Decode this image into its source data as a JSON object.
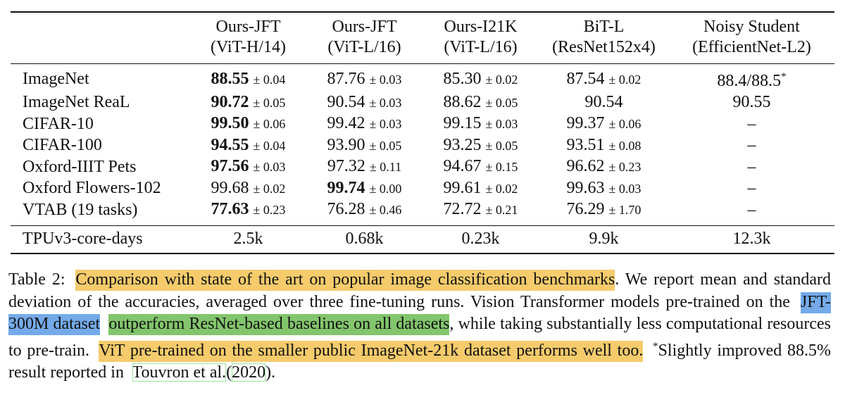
{
  "table": {
    "columns": [
      {
        "name": "Ours-JFT",
        "model": "(ViT-H/14)"
      },
      {
        "name": "Ours-JFT",
        "model": "(ViT-L/16)"
      },
      {
        "name": "Ours-I21K",
        "model": "(ViT-L/16)"
      },
      {
        "name": "BiT-L",
        "model": "(ResNet152x4)"
      },
      {
        "name": "Noisy Student",
        "model": "(EfficientNet-L2)"
      }
    ],
    "rows": [
      {
        "label": "ImageNet",
        "cells": [
          {
            "value": "88.55",
            "std": "± 0.04",
            "bold": true
          },
          {
            "value": "87.76",
            "std": "± 0.03"
          },
          {
            "value": "85.30",
            "std": "± 0.02"
          },
          {
            "value": "87.54",
            "std": "± 0.02"
          },
          {
            "value": "88.4/88.5",
            "sup": "*"
          }
        ]
      },
      {
        "label": "ImageNet ReaL",
        "cells": [
          {
            "value": "90.72",
            "std": "± 0.05",
            "bold": true
          },
          {
            "value": "90.54",
            "std": "± 0.03"
          },
          {
            "value": "88.62",
            "std": "± 0.05"
          },
          {
            "value": "90.54"
          },
          {
            "value": "90.55"
          }
        ]
      },
      {
        "label": "CIFAR-10",
        "cells": [
          {
            "value": "99.50",
            "std": "± 0.06",
            "bold": true
          },
          {
            "value": "99.42",
            "std": "± 0.03"
          },
          {
            "value": "99.15",
            "std": "± 0.03"
          },
          {
            "value": "99.37",
            "std": "± 0.06"
          },
          {
            "value": "–"
          }
        ]
      },
      {
        "label": "CIFAR-100",
        "cells": [
          {
            "value": "94.55",
            "std": "± 0.04",
            "bold": true
          },
          {
            "value": "93.90",
            "std": "± 0.05"
          },
          {
            "value": "93.25",
            "std": "± 0.05"
          },
          {
            "value": "93.51",
            "std": "± 0.08"
          },
          {
            "value": "–"
          }
        ]
      },
      {
        "label": "Oxford-IIIT Pets",
        "cells": [
          {
            "value": "97.56",
            "std": "± 0.03",
            "bold": true
          },
          {
            "value": "97.32",
            "std": "± 0.11"
          },
          {
            "value": "94.67",
            "std": "± 0.15"
          },
          {
            "value": "96.62",
            "std": "± 0.23"
          },
          {
            "value": "–"
          }
        ]
      },
      {
        "label": "Oxford Flowers-102",
        "cells": [
          {
            "value": "99.68",
            "std": "± 0.02"
          },
          {
            "value": "99.74",
            "std": "± 0.00",
            "bold": true
          },
          {
            "value": "99.61",
            "std": "± 0.02"
          },
          {
            "value": "99.63",
            "std": "± 0.03"
          },
          {
            "value": "–"
          }
        ]
      },
      {
        "label": "VTAB (19 tasks)",
        "cells": [
          {
            "value": "77.63",
            "std": "± 0.23",
            "bold": true
          },
          {
            "value": "76.28",
            "std": "± 0.46"
          },
          {
            "value": "72.72",
            "std": "± 0.21"
          },
          {
            "value": "76.29",
            "std": "± 1.70"
          },
          {
            "value": "–"
          }
        ]
      }
    ],
    "footer": {
      "label": "TPUv3-core-days",
      "cells": [
        "2.5k",
        "0.68k",
        "0.23k",
        "9.9k",
        "12.3k"
      ]
    }
  },
  "caption": {
    "segments": [
      {
        "text": "Table 2:"
      },
      {
        "text": "Comparison with state of the art on popular image classification benchmarks",
        "highlight": "#f5cb6c",
        "gap": true
      },
      {
        "text": ". We report mean and standard deviation of the accuracies, averaged over three fine-tuning runs. Vision Transformer models pre-trained on the"
      },
      {
        "text": "JFT-300M dataset",
        "highlight": "#74aaea",
        "gap": true
      },
      {
        "text": "outperform ResNet-based baselines on all datasets",
        "highlight": "#82c56c",
        "gap": true
      },
      {
        "text": ", while taking substantially less computational resources to pre-train."
      },
      {
        "text": "ViT pre-trained on the smaller public ImageNet-21k dataset performs well too.",
        "highlight": "#f5cb6c",
        "gap": true
      },
      {
        "text": "Slightly improved 88.5% result reported in",
        "sup": "*",
        "gap": true
      },
      {
        "text": "Touvron et al.",
        "link": "#9be39b",
        "gap": true
      },
      {
        "text": "("
      },
      {
        "text": "2020",
        "link": "#9be39b"
      },
      {
        "text": ")."
      }
    ]
  }
}
